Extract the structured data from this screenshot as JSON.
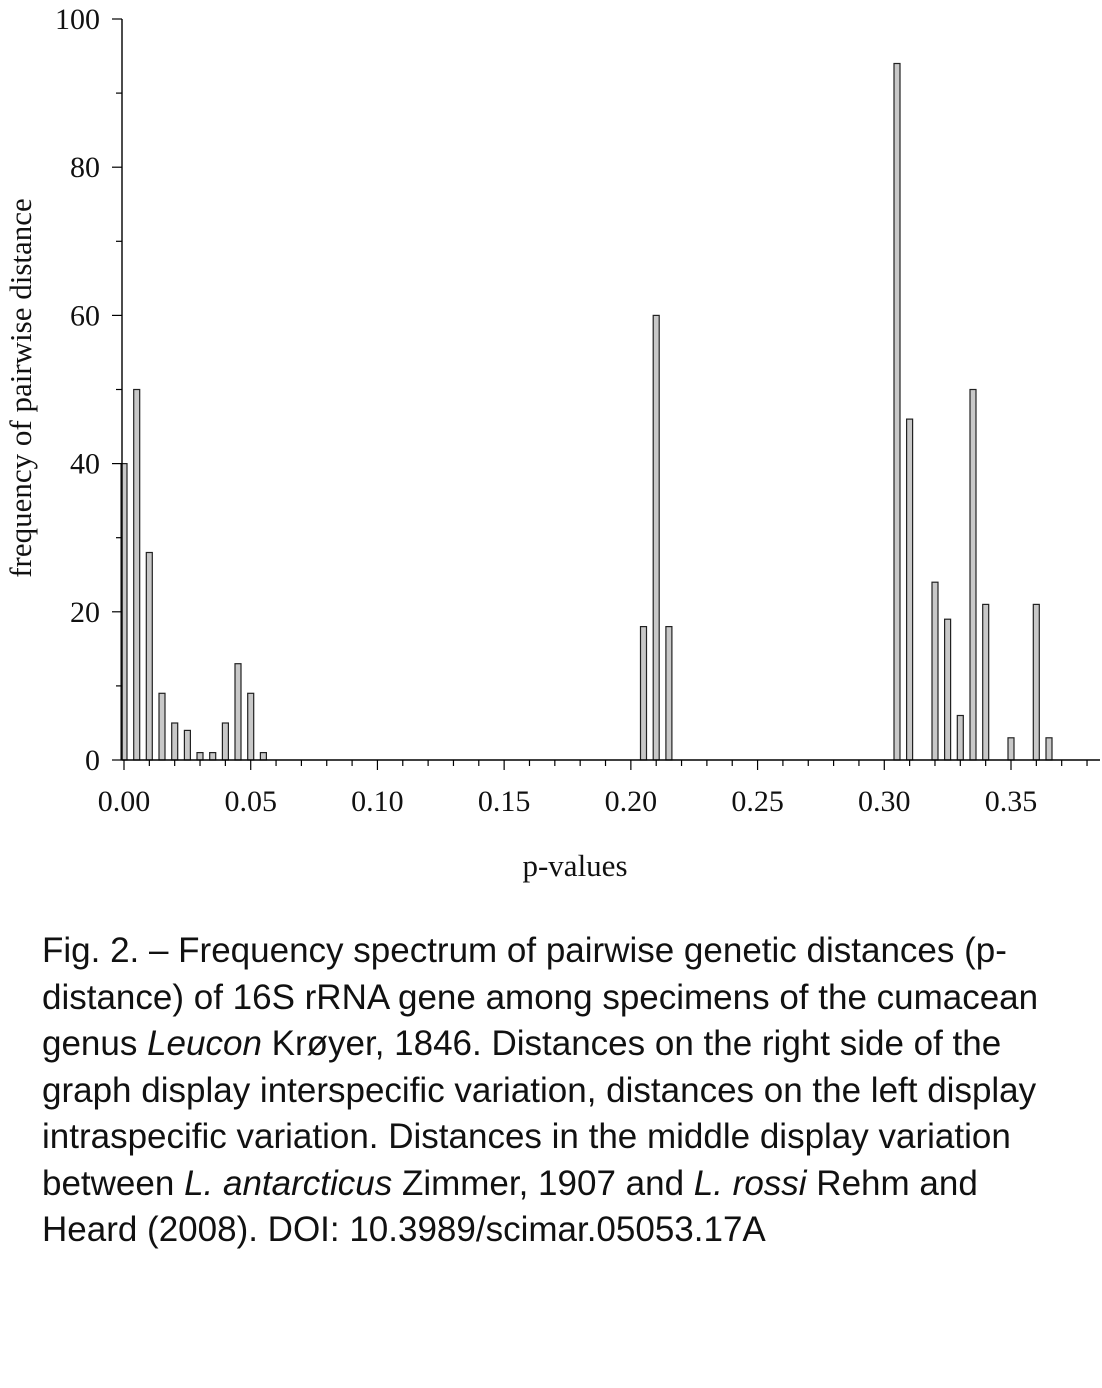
{
  "chart_data": {
    "type": "bar",
    "xlabel": "p-values",
    "ylabel": "frequency of pairwise distance",
    "xlim": [
      0.0,
      0.385
    ],
    "ylim": [
      0,
      100
    ],
    "x_ticks": [
      "0.00",
      "0.05",
      "0.10",
      "0.15",
      "0.20",
      "0.25",
      "0.30",
      "0.35"
    ],
    "y_ticks": [
      "0",
      "20",
      "40",
      "60",
      "80",
      "100"
    ],
    "grid": false,
    "x": [
      0.0,
      0.005,
      0.01,
      0.015,
      0.02,
      0.025,
      0.03,
      0.035,
      0.04,
      0.045,
      0.05,
      0.055,
      0.205,
      0.21,
      0.215,
      0.305,
      0.31,
      0.32,
      0.325,
      0.33,
      0.335,
      0.34,
      0.35,
      0.36,
      0.365
    ],
    "values": [
      40,
      50,
      28,
      9,
      5,
      4,
      1,
      1,
      5,
      13,
      9,
      1,
      18,
      60,
      18,
      94,
      46,
      24,
      19,
      6,
      50,
      21,
      3,
      21,
      3
    ]
  },
  "caption": {
    "part1": "Fig. 2. – Frequency spectrum of pairwise genetic distances (p-distance) of 16S rRNA gene among specimens of the cumacean genus ",
    "genus": "Leucon",
    "part2": " Krøyer, 1846. Distances on the right side of the graph display interspecific variation, distances on the left display intraspecific variation. Distances in the middle display variation between ",
    "species1": "L. antarcticus",
    "part3": " Zimmer, 1907 and ",
    "species2": "L. rossi",
    "part4": " Rehm and Heard (2008). DOI: 10.3989/scimar.05053.17A"
  }
}
